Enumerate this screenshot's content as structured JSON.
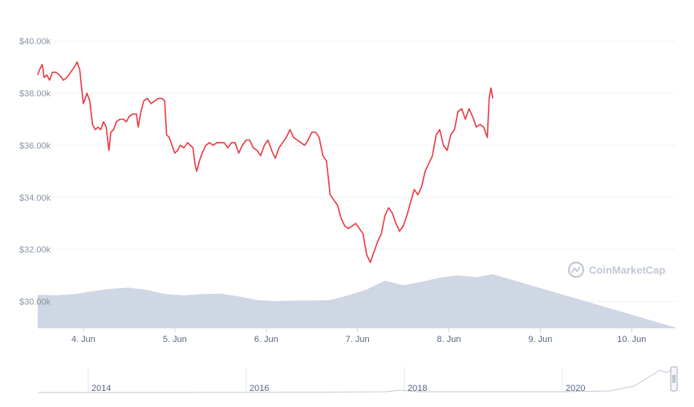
{
  "chart_data": {
    "type": "line",
    "watermark": "CoinMarketCap",
    "y_axis": {
      "ticks": [
        "$30.00k",
        "$32.00k",
        "$34.00k",
        "$36.00k",
        "$38.00k",
        "$40.00k"
      ],
      "tick_values": [
        30000,
        32000,
        34000,
        36000,
        38000,
        40000
      ],
      "range": [
        29000,
        40500
      ]
    },
    "x_axis": {
      "ticks": [
        "4. Jun",
        "5. Jun",
        "6. Jun",
        "7. Jun",
        "8. Jun",
        "9. Jun",
        "10. Jun"
      ],
      "tick_values": [
        4,
        5,
        6,
        7,
        8,
        9,
        10
      ],
      "range": [
        3.5,
        10.48
      ]
    },
    "series": [
      {
        "type": "line",
        "color": "#ea3943",
        "points": [
          [
            3.5,
            38700
          ],
          [
            3.52,
            38900
          ],
          [
            3.55,
            39100
          ],
          [
            3.57,
            38600
          ],
          [
            3.6,
            38700
          ],
          [
            3.63,
            38500
          ],
          [
            3.66,
            38800
          ],
          [
            3.7,
            38800
          ],
          [
            3.74,
            38700
          ],
          [
            3.78,
            38500
          ],
          [
            3.82,
            38600
          ],
          [
            3.86,
            38800
          ],
          [
            3.9,
            39000
          ],
          [
            3.93,
            39200
          ],
          [
            3.96,
            38900
          ],
          [
            3.98,
            38200
          ],
          [
            4.0,
            37600
          ],
          [
            4.02,
            37800
          ],
          [
            4.04,
            38000
          ],
          [
            4.07,
            37700
          ],
          [
            4.1,
            36800
          ],
          [
            4.13,
            36600
          ],
          [
            4.16,
            36700
          ],
          [
            4.19,
            36600
          ],
          [
            4.22,
            36900
          ],
          [
            4.25,
            36700
          ],
          [
            4.28,
            35800
          ],
          [
            4.3,
            36500
          ],
          [
            4.33,
            36600
          ],
          [
            4.36,
            36900
          ],
          [
            4.4,
            37000
          ],
          [
            4.44,
            37000
          ],
          [
            4.47,
            36900
          ],
          [
            4.5,
            37100
          ],
          [
            4.54,
            37200
          ],
          [
            4.58,
            37200
          ],
          [
            4.6,
            36700
          ],
          [
            4.63,
            37300
          ],
          [
            4.66,
            37700
          ],
          [
            4.7,
            37800
          ],
          [
            4.74,
            37600
          ],
          [
            4.78,
            37700
          ],
          [
            4.82,
            37800
          ],
          [
            4.86,
            37800
          ],
          [
            4.89,
            37700
          ],
          [
            4.91,
            36400
          ],
          [
            4.94,
            36300
          ],
          [
            4.97,
            36000
          ],
          [
            5.0,
            35700
          ],
          [
            5.03,
            35800
          ],
          [
            5.06,
            36000
          ],
          [
            5.1,
            35900
          ],
          [
            5.14,
            36100
          ],
          [
            5.17,
            36000
          ],
          [
            5.2,
            35900
          ],
          [
            5.22,
            35300
          ],
          [
            5.24,
            35000
          ],
          [
            5.27,
            35400
          ],
          [
            5.3,
            35700
          ],
          [
            5.34,
            36000
          ],
          [
            5.38,
            36100
          ],
          [
            5.42,
            36000
          ],
          [
            5.46,
            36100
          ],
          [
            5.5,
            36100
          ],
          [
            5.54,
            36100
          ],
          [
            5.58,
            35900
          ],
          [
            5.62,
            36100
          ],
          [
            5.66,
            36100
          ],
          [
            5.7,
            35700
          ],
          [
            5.74,
            36000
          ],
          [
            5.78,
            36200
          ],
          [
            5.82,
            36200
          ],
          [
            5.86,
            35900
          ],
          [
            5.9,
            35800
          ],
          [
            5.94,
            35600
          ],
          [
            5.98,
            36000
          ],
          [
            6.02,
            36200
          ],
          [
            6.06,
            35800
          ],
          [
            6.1,
            35500
          ],
          [
            6.14,
            35900
          ],
          [
            6.18,
            36100
          ],
          [
            6.22,
            36300
          ],
          [
            6.26,
            36600
          ],
          [
            6.3,
            36300
          ],
          [
            6.34,
            36200
          ],
          [
            6.38,
            36100
          ],
          [
            6.42,
            36000
          ],
          [
            6.46,
            36200
          ],
          [
            6.5,
            36500
          ],
          [
            6.54,
            36500
          ],
          [
            6.58,
            36300
          ],
          [
            6.62,
            35600
          ],
          [
            6.66,
            35400
          ],
          [
            6.7,
            34100
          ],
          [
            6.74,
            33900
          ],
          [
            6.78,
            33700
          ],
          [
            6.82,
            33200
          ],
          [
            6.86,
            32900
          ],
          [
            6.9,
            32800
          ],
          [
            6.94,
            32900
          ],
          [
            6.98,
            33000
          ],
          [
            7.02,
            32800
          ],
          [
            7.06,
            32600
          ],
          [
            7.1,
            31800
          ],
          [
            7.14,
            31500
          ],
          [
            7.18,
            31900
          ],
          [
            7.22,
            32300
          ],
          [
            7.26,
            32600
          ],
          [
            7.3,
            33300
          ],
          [
            7.34,
            33600
          ],
          [
            7.38,
            33400
          ],
          [
            7.42,
            33000
          ],
          [
            7.46,
            32700
          ],
          [
            7.5,
            32900
          ],
          [
            7.54,
            33300
          ],
          [
            7.58,
            33800
          ],
          [
            7.62,
            34300
          ],
          [
            7.66,
            34100
          ],
          [
            7.7,
            34400
          ],
          [
            7.74,
            35000
          ],
          [
            7.78,
            35300
          ],
          [
            7.82,
            35600
          ],
          [
            7.86,
            36400
          ],
          [
            7.9,
            36600
          ],
          [
            7.94,
            36000
          ],
          [
            7.98,
            35800
          ],
          [
            8.02,
            36400
          ],
          [
            8.06,
            36600
          ],
          [
            8.1,
            37300
          ],
          [
            8.14,
            37400
          ],
          [
            8.18,
            37000
          ],
          [
            8.22,
            37400
          ],
          [
            8.26,
            37100
          ],
          [
            8.3,
            36700
          ],
          [
            8.34,
            36800
          ],
          [
            8.38,
            36700
          ],
          [
            8.42,
            36300
          ],
          [
            8.44,
            37800
          ],
          [
            8.46,
            38200
          ],
          [
            8.48,
            37800
          ]
        ]
      }
    ],
    "volume": {
      "type": "area",
      "color": "#cfd6e4",
      "note_level_scale": "fraction of volume band height",
      "levels": [
        [
          3.5,
          0.56
        ],
        [
          3.7,
          0.55
        ],
        [
          3.9,
          0.57
        ],
        [
          4.1,
          0.62
        ],
        [
          4.3,
          0.66
        ],
        [
          4.5,
          0.68
        ],
        [
          4.7,
          0.64
        ],
        [
          4.9,
          0.57
        ],
        [
          5.1,
          0.55
        ],
        [
          5.3,
          0.57
        ],
        [
          5.5,
          0.58
        ],
        [
          5.7,
          0.53
        ],
        [
          5.9,
          0.47
        ],
        [
          6.1,
          0.45
        ],
        [
          6.3,
          0.46
        ],
        [
          6.5,
          0.46
        ],
        [
          6.7,
          0.47
        ],
        [
          6.9,
          0.55
        ],
        [
          7.1,
          0.65
        ],
        [
          7.3,
          0.8
        ],
        [
          7.5,
          0.72
        ],
        [
          7.7,
          0.78
        ],
        [
          7.9,
          0.85
        ],
        [
          8.1,
          0.89
        ],
        [
          8.3,
          0.86
        ],
        [
          8.48,
          0.91
        ]
      ]
    },
    "navigator": {
      "ticks": [
        "2014",
        "2016",
        "2018",
        "2020"
      ]
    },
    "grid": true,
    "legend": "none"
  }
}
